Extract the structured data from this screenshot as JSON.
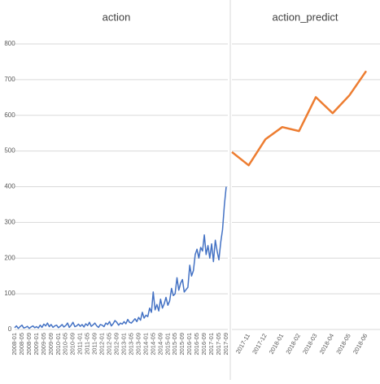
{
  "chart_data": [
    {
      "type": "line",
      "title": "action",
      "color": "#4472c4",
      "categories": [
        "2008-01",
        null,
        null,
        null,
        "2008-05",
        null,
        null,
        null,
        "2008-09",
        null,
        null,
        null,
        "2009-01",
        null,
        null,
        null,
        "2009-05",
        null,
        null,
        null,
        "2009-09",
        null,
        null,
        null,
        "2010-01",
        null,
        null,
        null,
        "2010-05",
        null,
        null,
        null,
        "2010-09",
        null,
        null,
        null,
        "2011-01",
        null,
        null,
        null,
        "2011-05",
        null,
        null,
        null,
        "2011-09",
        null,
        null,
        null,
        "2012-01",
        null,
        null,
        null,
        "2012-05",
        null,
        null,
        null,
        "2012-09",
        null,
        null,
        null,
        "2013-01",
        null,
        null,
        null,
        "2013-05",
        null,
        null,
        null,
        "2013-09",
        null,
        null,
        null,
        "2014-01",
        null,
        null,
        null,
        "2014-05",
        null,
        null,
        null,
        "2014-09",
        null,
        null,
        null,
        "2015-01",
        null,
        null,
        null,
        "2015-05",
        null,
        null,
        null,
        "2015-09",
        null,
        null,
        null,
        "2016-01",
        null,
        null,
        null,
        "2016-05",
        null,
        null,
        null,
        "2016-09",
        null,
        null,
        null,
        "2017-01",
        null,
        null,
        null,
        "2017-05",
        null,
        null,
        null,
        "2017-09"
      ],
      "values": [
        5,
        10,
        3,
        8,
        12,
        4,
        6,
        9,
        3,
        7,
        10,
        5,
        8,
        4,
        12,
        6,
        15,
        10,
        18,
        8,
        14,
        6,
        10,
        12,
        5,
        9,
        14,
        7,
        11,
        18,
        6,
        12,
        20,
        8,
        10,
        15,
        9,
        14,
        7,
        16,
        11,
        20,
        9,
        13,
        18,
        10,
        6,
        14,
        12,
        8,
        18,
        14,
        22,
        10,
        16,
        25,
        20,
        12,
        18,
        15,
        22,
        16,
        28,
        20,
        18,
        24,
        30,
        22,
        34,
        26,
        48,
        32,
        40,
        36,
        60,
        48,
        105,
        55,
        70,
        52,
        85,
        60,
        72,
        90,
        68,
        80,
        115,
        95,
        100,
        145,
        110,
        130,
        140,
        105,
        112,
        118,
        180,
        150,
        165,
        210,
        225,
        200,
        230,
        220,
        265,
        210,
        235,
        200,
        240,
        190,
        250,
        220,
        195,
        245,
        280,
        350,
        400
      ],
      "ylim": [
        0,
        800
      ],
      "yticks": [
        0,
        100,
        200,
        300,
        400,
        500,
        600,
        700,
        800
      ],
      "grid": true,
      "tick_labels": true
    },
    {
      "type": "line",
      "title": "action_predict",
      "color": "#ed7d31",
      "categories": [
        null,
        "2017-11",
        "2017-12",
        "2018-01",
        "2018-02",
        "2018-03",
        "2018-04",
        "2018-05",
        "2018-06"
      ],
      "values": [
        497,
        460,
        533,
        567,
        556,
        651,
        606,
        656,
        724
      ],
      "ylim": [
        0,
        800
      ],
      "yticks": [
        0,
        100,
        200,
        300,
        400,
        500,
        600,
        700,
        800
      ],
      "grid": true,
      "tick_labels": false
    }
  ]
}
